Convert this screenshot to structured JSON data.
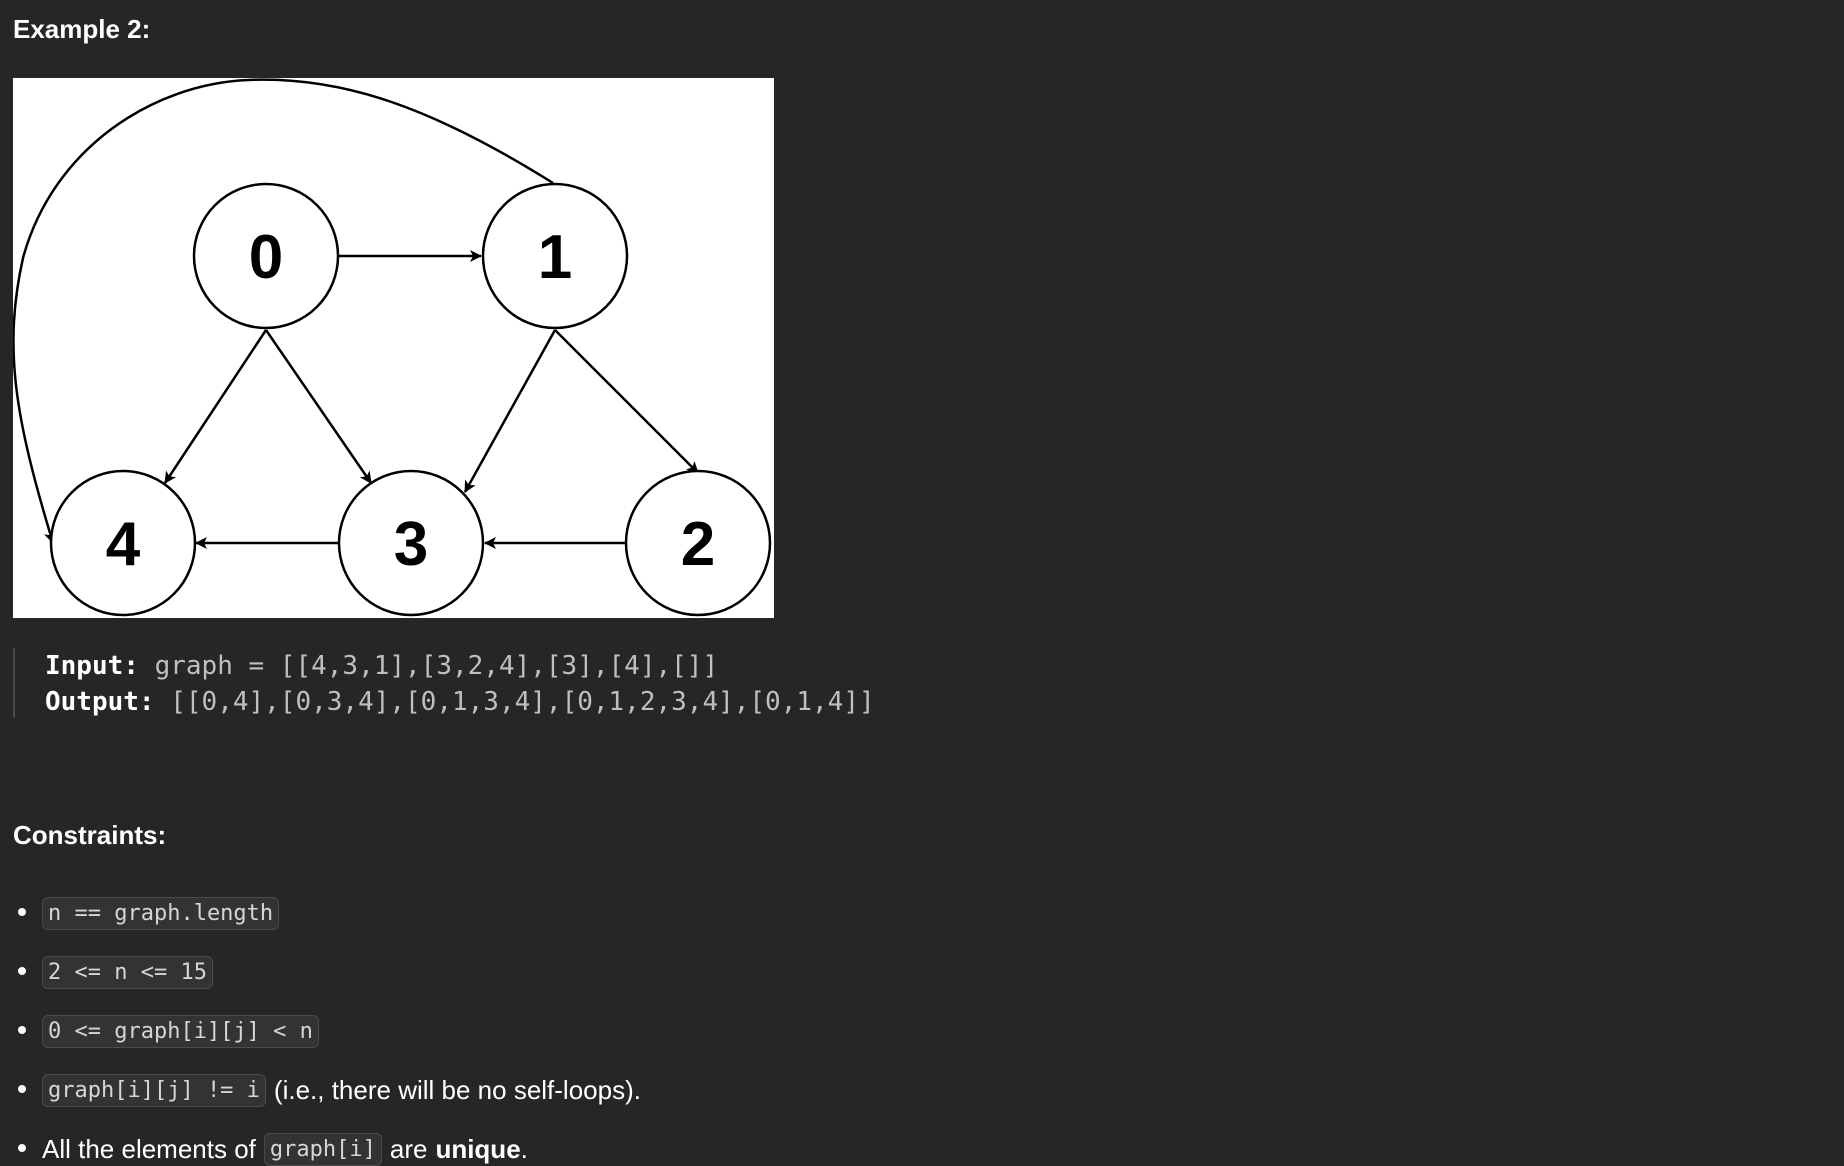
{
  "example": {
    "heading": "Example 2:",
    "nodes": [
      {
        "id": "0",
        "label": "0"
      },
      {
        "id": "1",
        "label": "1"
      },
      {
        "id": "2",
        "label": "2"
      },
      {
        "id": "3",
        "label": "3"
      },
      {
        "id": "4",
        "label": "4"
      }
    ],
    "edges": [
      {
        "from": "0",
        "to": "1"
      },
      {
        "from": "0",
        "to": "4"
      },
      {
        "from": "0",
        "to": "3"
      },
      {
        "from": "1",
        "to": "3"
      },
      {
        "from": "1",
        "to": "2"
      },
      {
        "from": "1",
        "to": "4"
      },
      {
        "from": "2",
        "to": "3"
      },
      {
        "from": "3",
        "to": "4"
      }
    ],
    "input_label": "Input:",
    "input_value": " graph = [[4,3,1],[3,2,4],[3],[4],[]]",
    "output_label": "Output:",
    "output_value": " [[0,4],[0,3,4],[0,1,3,4],[0,1,2,3,4],[0,1,4]]"
  },
  "constraints": {
    "heading": "Constraints:",
    "items": [
      {
        "code": "n == graph.length"
      },
      {
        "code": "2 <= n <= 15"
      },
      {
        "code": "0 <= graph[i][j] < n"
      },
      {
        "code": "graph[i][j] != i",
        "text": "(i.e., there will be no self-loops)."
      },
      {
        "text_before": "All the elements of",
        "code": "graph[i]",
        "text_middle": "are",
        "bold": "unique",
        "text_after": "."
      }
    ]
  }
}
